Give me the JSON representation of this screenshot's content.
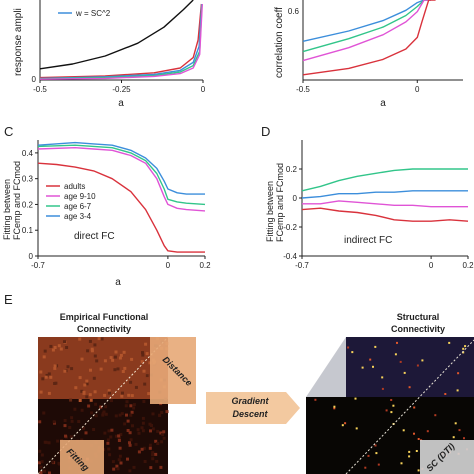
{
  "panel_labels": {
    "c": "C",
    "d": "D",
    "e": "E"
  },
  "colors": {
    "adults": "#d9323c",
    "age_9_10": "#e054d6",
    "age_6_7": "#32c58a",
    "age_3_4": "#3c8edb",
    "black": "#111111",
    "arrow_fill": "#f3c9a0"
  },
  "matrix_section": {
    "empirical_title_line1": "Empirical Functional",
    "empirical_title_line2": "Connectivity",
    "structural_title_line1": "Structural",
    "structural_title_line2": "Connectivity",
    "gradient_line1": "Gradient",
    "gradient_line2": "Descent",
    "distance": "Distance",
    "fitting": "Fitting",
    "sc_dti": "SC (DTI)"
  },
  "chart_data": [
    {
      "id": "A",
      "type": "line",
      "xlabel": "a",
      "ylabel": "response ampli",
      "xlim": [
        -0.5,
        0
      ],
      "xticks": [
        "-0.5",
        "-0.25",
        "0"
      ],
      "yticks": [
        "0"
      ],
      "legend": [
        "w = SC^2"
      ],
      "series": [
        {
          "color": "#111111",
          "x": [
            -0.5,
            -0.4,
            -0.3,
            -0.2,
            -0.12,
            -0.06,
            -0.03
          ],
          "y": [
            0.14,
            0.2,
            0.3,
            0.46,
            0.66,
            0.88,
            1.0
          ]
        },
        {
          "color": "#d9323c",
          "x": [
            -0.5,
            -0.3,
            -0.15,
            -0.07,
            -0.03,
            -0.015,
            -0.005
          ],
          "y": [
            0.03,
            0.05,
            0.09,
            0.15,
            0.28,
            0.5,
            0.95
          ]
        },
        {
          "color": "#3c8edb",
          "x": [
            -0.5,
            -0.3,
            -0.15,
            -0.07,
            -0.03,
            -0.012,
            -0.004
          ],
          "y": [
            0.02,
            0.04,
            0.07,
            0.12,
            0.22,
            0.42,
            0.95
          ]
        },
        {
          "color": "#32c58a",
          "x": [
            -0.5,
            -0.3,
            -0.15,
            -0.07,
            -0.03,
            -0.01,
            -0.003
          ],
          "y": [
            0.015,
            0.03,
            0.055,
            0.1,
            0.18,
            0.36,
            0.95
          ]
        },
        {
          "color": "#e054d6",
          "x": [
            -0.5,
            -0.3,
            -0.15,
            -0.07,
            -0.03,
            -0.01,
            -0.002
          ],
          "y": [
            0.01,
            0.02,
            0.045,
            0.08,
            0.15,
            0.32,
            0.95
          ]
        }
      ]
    },
    {
      "id": "B",
      "type": "line",
      "xlabel": "a",
      "ylabel": "correlation coeff",
      "xlim": [
        -0.5,
        0.2
      ],
      "xticks": [
        "-0.5",
        "0"
      ],
      "yticks": [
        "0.6"
      ],
      "series": [
        {
          "color": "#3c8edb",
          "x": [
            -0.5,
            -0.3,
            -0.15,
            -0.05,
            0,
            0.03,
            0.06
          ],
          "y": [
            0.3,
            0.38,
            0.46,
            0.54,
            0.6,
            0.66,
            0.76
          ]
        },
        {
          "color": "#32c58a",
          "x": [
            -0.5,
            -0.3,
            -0.15,
            -0.05,
            0,
            0.03,
            0.06
          ],
          "y": [
            0.22,
            0.32,
            0.41,
            0.5,
            0.57,
            0.64,
            0.76
          ]
        },
        {
          "color": "#e054d6",
          "x": [
            -0.5,
            -0.3,
            -0.15,
            -0.05,
            0,
            0.03,
            0.06
          ],
          "y": [
            0.15,
            0.25,
            0.35,
            0.45,
            0.53,
            0.62,
            0.76
          ]
        },
        {
          "color": "#d9323c",
          "x": [
            -0.5,
            -0.3,
            -0.15,
            -0.05,
            0,
            0.02,
            0.05,
            0.08
          ],
          "y": [
            0.04,
            0.09,
            0.16,
            0.24,
            0.33,
            0.45,
            0.62,
            0.76
          ]
        }
      ]
    },
    {
      "id": "C",
      "type": "line",
      "xlabel": "a",
      "ylabel_line1": "Fitting between",
      "ylabel_line2": "FCemp and FCmod",
      "annotation": "direct FC",
      "xlim": [
        -0.7,
        0.2
      ],
      "ylim": [
        0,
        0.45
      ],
      "xticks": [
        "-0.7",
        "0",
        "0.2"
      ],
      "xtick_values": [
        -0.7,
        0,
        0.2
      ],
      "yticks": [
        "0.4",
        "0.3",
        "0.2",
        "0.1",
        "0"
      ],
      "ytick_values": [
        0.4,
        0.3,
        0.2,
        0.1,
        0
      ],
      "legend_position": "lower-left",
      "series": [
        {
          "name": "adults",
          "color": "#d9323c",
          "x": [
            -0.7,
            -0.6,
            -0.5,
            -0.4,
            -0.3,
            -0.2,
            -0.12,
            -0.06,
            -0.02,
            0,
            0.05,
            0.1,
            0.2
          ],
          "y": [
            0.36,
            0.355,
            0.345,
            0.33,
            0.3,
            0.25,
            0.18,
            0.1,
            0.04,
            0.02,
            0.015,
            0.015,
            0.015
          ]
        },
        {
          "name": "age 9-10",
          "color": "#e054d6",
          "x": [
            -0.7,
            -0.5,
            -0.4,
            -0.3,
            -0.2,
            -0.12,
            -0.06,
            -0.02,
            0,
            0.05,
            0.1,
            0.2
          ],
          "y": [
            0.415,
            0.42,
            0.415,
            0.41,
            0.39,
            0.36,
            0.3,
            0.23,
            0.2,
            0.185,
            0.18,
            0.175
          ]
        },
        {
          "name": "age 6-7",
          "color": "#32c58a",
          "x": [
            -0.7,
            -0.5,
            -0.4,
            -0.3,
            -0.2,
            -0.12,
            -0.06,
            -0.02,
            0,
            0.05,
            0.1,
            0.2
          ],
          "y": [
            0.425,
            0.43,
            0.425,
            0.42,
            0.4,
            0.37,
            0.32,
            0.26,
            0.22,
            0.21,
            0.205,
            0.2
          ]
        },
        {
          "name": "age 3-4",
          "color": "#3c8edb",
          "x": [
            -0.7,
            -0.5,
            -0.4,
            -0.3,
            -0.2,
            -0.12,
            -0.06,
            -0.02,
            0,
            0.05,
            0.1,
            0.2
          ],
          "y": [
            0.43,
            0.44,
            0.435,
            0.43,
            0.41,
            0.38,
            0.34,
            0.29,
            0.26,
            0.245,
            0.24,
            0.24
          ]
        }
      ]
    },
    {
      "id": "D",
      "type": "line",
      "xlabel": "",
      "ylabel_line1": "Fitting between",
      "ylabel_line2": "FCemp and FCmod",
      "annotation": "indirect FC",
      "xlim": [
        -0.7,
        0.2
      ],
      "ylim": [
        -0.4,
        0.4
      ],
      "xticks": [
        "-0.7",
        "0",
        "0.2"
      ],
      "xtick_values": [
        -0.7,
        0,
        0.2
      ],
      "yticks": [
        "0.2",
        "0",
        "-0.2",
        "-0.4"
      ],
      "ytick_values": [
        0.2,
        0,
        -0.2,
        -0.4
      ],
      "series": [
        {
          "name": "age 6-7",
          "color": "#32c58a",
          "x": [
            -0.7,
            -0.6,
            -0.5,
            -0.4,
            -0.3,
            -0.2,
            -0.1,
            0,
            0.1,
            0.2
          ],
          "y": [
            0.05,
            0.08,
            0.12,
            0.15,
            0.17,
            0.19,
            0.2,
            0.2,
            0.2,
            0.2
          ]
        },
        {
          "name": "age 3-4",
          "color": "#3c8edb",
          "x": [
            -0.7,
            -0.6,
            -0.5,
            -0.4,
            -0.3,
            -0.2,
            -0.1,
            0,
            0.1,
            0.2
          ],
          "y": [
            0.0,
            0.01,
            0.03,
            0.03,
            0.04,
            0.04,
            0.05,
            0.05,
            0.05,
            0.05
          ]
        },
        {
          "name": "age 9-10",
          "color": "#e054d6",
          "x": [
            -0.7,
            -0.6,
            -0.5,
            -0.4,
            -0.3,
            -0.2,
            -0.1,
            0,
            0.1,
            0.2
          ],
          "y": [
            -0.04,
            -0.04,
            -0.02,
            -0.03,
            -0.04,
            -0.05,
            -0.05,
            -0.06,
            -0.06,
            -0.06
          ]
        },
        {
          "name": "adults",
          "color": "#d9323c",
          "x": [
            -0.7,
            -0.6,
            -0.5,
            -0.4,
            -0.3,
            -0.2,
            -0.1,
            0,
            0.1,
            0.2
          ],
          "y": [
            -0.08,
            -0.07,
            -0.09,
            -0.1,
            -0.12,
            -0.15,
            -0.16,
            -0.16,
            -0.15,
            -0.16
          ]
        }
      ]
    }
  ]
}
